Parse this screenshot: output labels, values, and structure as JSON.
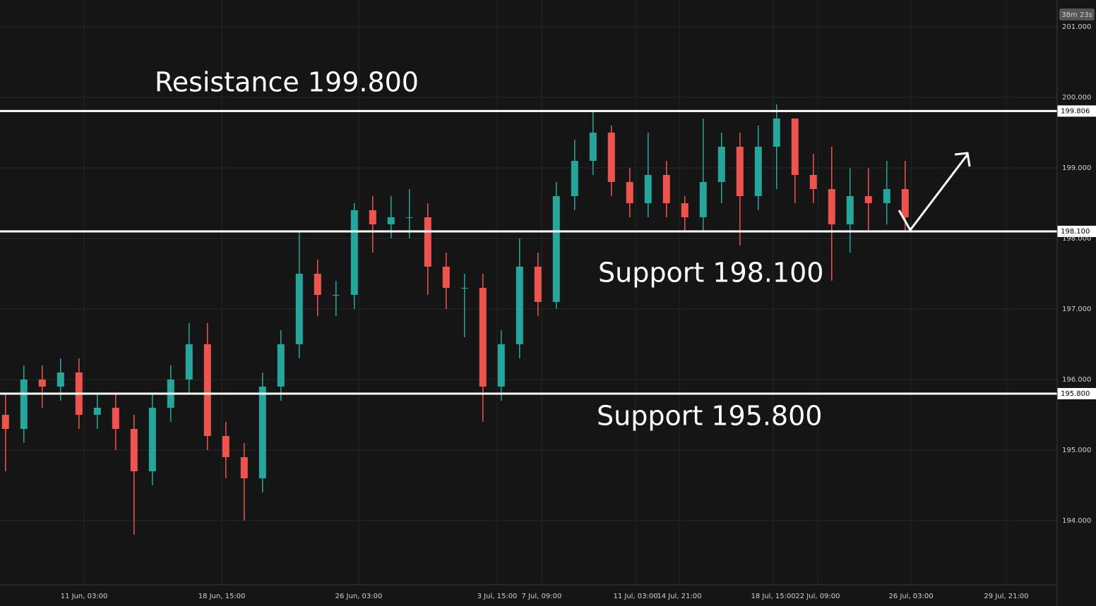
{
  "chart_data": {
    "type": "candlestick",
    "timer": "38m 23s",
    "annotations": [
      "Resistance 199.800",
      "Support 198.100",
      "Support 195.800"
    ],
    "levels": [
      {
        "value": 199.806,
        "label": "199.806"
      },
      {
        "value": 198.1,
        "label": "198.100"
      },
      {
        "value": 195.8,
        "label": "195.800"
      }
    ],
    "open": [
      195.5,
      195.3,
      196.0,
      195.9,
      196.1,
      195.5,
      195.6,
      195.3,
      194.7,
      195.6,
      196.0,
      196.5,
      195.2,
      194.9,
      194.6,
      195.9,
      196.5,
      197.5,
      197.2,
      197.2,
      198.4,
      198.2,
      198.3,
      198.3,
      197.6,
      197.3,
      197.3,
      195.9,
      196.5,
      197.6,
      197.1,
      198.6,
      199.1,
      199.5,
      198.8,
      198.5,
      198.9,
      198.5,
      198.3,
      198.8,
      199.3,
      198.6,
      199.3,
      199.7,
      198.9,
      198.7,
      198.2,
      198.6,
      198.5,
      198.7
    ],
    "high": [
      195.8,
      196.2,
      196.2,
      196.3,
      196.3,
      195.8,
      195.8,
      195.5,
      195.8,
      196.2,
      196.8,
      196.8,
      195.4,
      195.1,
      196.1,
      196.7,
      198.1,
      197.7,
      197.4,
      198.5,
      198.6,
      198.6,
      198.7,
      198.5,
      197.8,
      197.5,
      197.5,
      196.7,
      198.0,
      197.8,
      198.8,
      199.4,
      199.8,
      199.6,
      199.0,
      199.5,
      199.1,
      198.6,
      199.7,
      199.5,
      199.5,
      199.6,
      199.9,
      199.7,
      199.2,
      199.3,
      199.0,
      199.0,
      199.1,
      199.1
    ],
    "low": [
      194.7,
      195.1,
      195.6,
      195.7,
      195.3,
      195.3,
      195.0,
      193.8,
      194.5,
      195.4,
      195.8,
      195.0,
      194.6,
      194.0,
      194.4,
      195.7,
      196.3,
      196.9,
      196.9,
      197.0,
      197.8,
      198.0,
      198.0,
      197.2,
      197.0,
      196.6,
      195.4,
      195.7,
      196.3,
      196.9,
      197.0,
      198.4,
      198.9,
      198.6,
      198.3,
      198.3,
      198.3,
      198.1,
      198.1,
      198.5,
      197.9,
      198.4,
      198.7,
      198.5,
      198.5,
      197.4,
      197.8,
      198.1,
      198.2,
      198.1
    ],
    "close": [
      195.3,
      196.0,
      195.9,
      196.1,
      195.5,
      195.6,
      195.3,
      194.7,
      195.6,
      196.0,
      196.5,
      195.2,
      194.9,
      194.6,
      195.9,
      196.5,
      197.5,
      197.2,
      197.2,
      198.4,
      198.2,
      198.3,
      198.3,
      197.6,
      197.3,
      197.3,
      195.9,
      196.5,
      197.6,
      197.1,
      198.6,
      199.1,
      199.5,
      198.8,
      198.5,
      198.9,
      198.5,
      198.3,
      198.8,
      199.3,
      198.6,
      199.3,
      199.7,
      198.9,
      198.7,
      198.2,
      198.6,
      198.5,
      198.7,
      198.3
    ],
    "up_color": "#26a69a",
    "down_color": "#ef5350",
    "xlim": [
      0,
      57.58
    ],
    "xticks": [
      {
        "value": 4.58,
        "label": "11 Jun, 03:00"
      },
      {
        "value": 12.08,
        "label": "18 Jun, 15:00"
      },
      {
        "value": 19.54,
        "label": "26 Jun, 03:00"
      },
      {
        "value": 27.08,
        "label": "3 Jul, 15:00"
      },
      {
        "value": 29.5,
        "label": "7 Jul, 09:00"
      },
      {
        "value": 34.62,
        "label": "11 Jul, 03:00"
      },
      {
        "value": 37.0,
        "label": "14 Jul, 21:00"
      },
      {
        "value": 42.12,
        "label": "18 Jul, 15:00"
      },
      {
        "value": 44.54,
        "label": "22 Jul, 09:00"
      },
      {
        "value": 49.62,
        "label": "26 Jul, 03:00"
      },
      {
        "value": 54.81,
        "label": "29 Jul, 21:00"
      }
    ],
    "ylim": [
      193.09,
      201.38
    ],
    "yticks": [
      {
        "value": 194,
        "label": "194.000"
      },
      {
        "value": 195,
        "label": "195.000"
      },
      {
        "value": 196,
        "label": "196.000"
      },
      {
        "value": 197,
        "label": "197.000"
      },
      {
        "value": 198,
        "label": "198.000"
      },
      {
        "value": 199,
        "label": "199.000"
      },
      {
        "value": 200,
        "label": "200.000"
      },
      {
        "value": 201,
        "label": "201.000"
      }
    ],
    "grid": true
  }
}
